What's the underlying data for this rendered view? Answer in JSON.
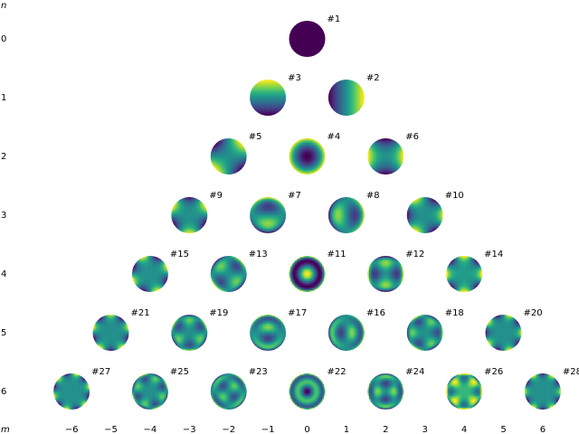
{
  "figure": {
    "n_axis_label": "n",
    "m_axis_label": "m",
    "n_ticks": [
      "0",
      "1",
      "2",
      "3",
      "4",
      "5",
      "6"
    ],
    "m_ticks": [
      "−6",
      "−5",
      "−4",
      "−3",
      "−2",
      "−1",
      "0",
      "1",
      "2",
      "3",
      "4",
      "5",
      "6"
    ]
  },
  "modes": [
    {
      "n": 0,
      "m": 0,
      "label": "#1"
    },
    {
      "n": 1,
      "m": -1,
      "label": "#3"
    },
    {
      "n": 1,
      "m": 1,
      "label": "#2"
    },
    {
      "n": 2,
      "m": -2,
      "label": "#5"
    },
    {
      "n": 2,
      "m": 0,
      "label": "#4"
    },
    {
      "n": 2,
      "m": 2,
      "label": "#6"
    },
    {
      "n": 3,
      "m": -3,
      "label": "#9"
    },
    {
      "n": 3,
      "m": -1,
      "label": "#7"
    },
    {
      "n": 3,
      "m": 1,
      "label": "#8"
    },
    {
      "n": 3,
      "m": 3,
      "label": "#10"
    },
    {
      "n": 4,
      "m": -4,
      "label": "#15"
    },
    {
      "n": 4,
      "m": -2,
      "label": "#13"
    },
    {
      "n": 4,
      "m": 0,
      "label": "#11"
    },
    {
      "n": 4,
      "m": 2,
      "label": "#12"
    },
    {
      "n": 4,
      "m": 4,
      "label": "#14"
    },
    {
      "n": 5,
      "m": -5,
      "label": "#21"
    },
    {
      "n": 5,
      "m": -3,
      "label": "#19"
    },
    {
      "n": 5,
      "m": -1,
      "label": "#17"
    },
    {
      "n": 5,
      "m": 1,
      "label": "#16"
    },
    {
      "n": 5,
      "m": 3,
      "label": "#18"
    },
    {
      "n": 5,
      "m": 5,
      "label": "#20"
    },
    {
      "n": 6,
      "m": -6,
      "label": "#27"
    },
    {
      "n": 6,
      "m": -4,
      "label": "#25"
    },
    {
      "n": 6,
      "m": -2,
      "label": "#23"
    },
    {
      "n": 6,
      "m": 0,
      "label": "#22"
    },
    {
      "n": 6,
      "m": 2,
      "label": "#24"
    },
    {
      "n": 6,
      "m": 4,
      "label": "#26"
    },
    {
      "n": 6,
      "m": 6,
      "label": "#28"
    }
  ],
  "colors": {
    "viridis": [
      "#440154",
      "#482878",
      "#3e4a89",
      "#31688e",
      "#26828e",
      "#1f9e89",
      "#35b779",
      "#6ece58",
      "#b5de2b",
      "#fde725"
    ],
    "text": "#000000",
    "background": "#ffffff"
  }
}
